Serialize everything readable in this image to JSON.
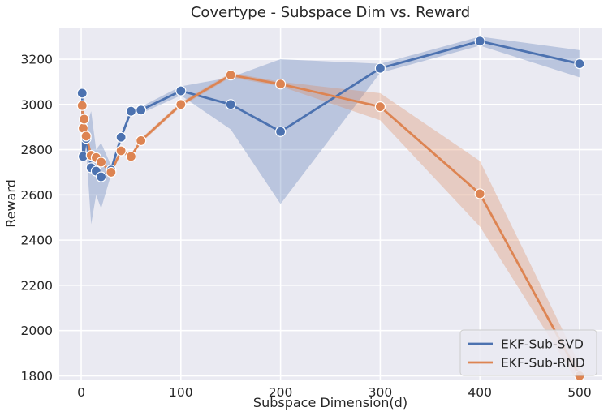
{
  "chart_data": {
    "type": "line",
    "title": "Covertype - Subspace Dim vs. Reward",
    "xlabel": "Subspace Dimension(d)",
    "ylabel": "Reward",
    "xlim": [
      -22,
      522
    ],
    "ylim": [
      1780,
      3340
    ],
    "xticks": [
      0,
      100,
      200,
      300,
      400,
      500
    ],
    "yticks": [
      1800,
      2000,
      2200,
      2400,
      2600,
      2800,
      3000,
      3200
    ],
    "grid": true,
    "legend_position": "lower-right",
    "background_color": "#eaeaf2",
    "series": [
      {
        "name": "EKF-Sub-SVD",
        "color": "#4c72b0",
        "x": [
          1,
          2,
          5,
          10,
          15,
          20,
          30,
          40,
          50,
          60,
          100,
          150,
          200,
          300,
          400,
          500
        ],
        "y": [
          3050,
          2770,
          2850,
          2720,
          2705,
          2680,
          2710,
          2855,
          2970,
          2975,
          3060,
          3000,
          2880,
          3160,
          3280,
          3180
        ],
        "ci_lower": [
          3040,
          2765,
          2800,
          2470,
          2600,
          2540,
          2690,
          2840,
          2960,
          2960,
          3040,
          2890,
          2560,
          3140,
          3260,
          3120
        ],
        "ci_upper": [
          3060,
          2780,
          2900,
          2970,
          2800,
          2830,
          2730,
          2870,
          2980,
          2990,
          3080,
          3120,
          3200,
          3180,
          3300,
          3240
        ]
      },
      {
        "name": "EKF-Sub-RND",
        "color": "#dd8452",
        "x": [
          1,
          2,
          3,
          5,
          10,
          15,
          20,
          30,
          40,
          50,
          60,
          100,
          150,
          200,
          300,
          400,
          500
        ],
        "y": [
          2995,
          2895,
          2935,
          2860,
          2775,
          2765,
          2745,
          2700,
          2795,
          2770,
          2840,
          3000,
          3130,
          3090,
          2990,
          2605,
          1800
        ],
        "ci_lower": [
          2985,
          2885,
          2925,
          2850,
          2765,
          2755,
          2735,
          2690,
          2785,
          2760,
          2830,
          2990,
          3120,
          3080,
          2930,
          2460,
          1760
        ],
        "ci_upper": [
          3005,
          2905,
          2945,
          2870,
          2785,
          2775,
          2755,
          2710,
          2805,
          2780,
          2850,
          3010,
          3140,
          3100,
          3050,
          2750,
          1850
        ]
      }
    ]
  }
}
